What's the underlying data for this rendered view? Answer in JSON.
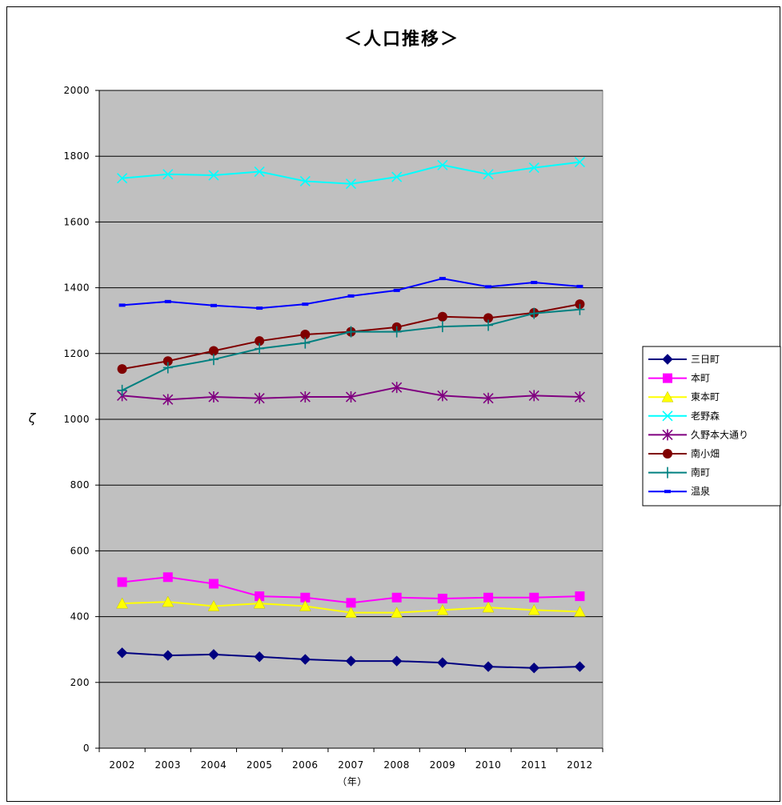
{
  "chart_data": {
    "type": "line",
    "title": "＜人口推移＞",
    "xlabel": "（年）",
    "ylabel": "ζ",
    "ylim": [
      0,
      2000
    ],
    "yticks": [
      0,
      200,
      400,
      600,
      800,
      1000,
      1200,
      1400,
      1600,
      1800,
      2000
    ],
    "categories": [
      "2002",
      "2003",
      "2004",
      "2005",
      "2006",
      "2007",
      "2008",
      "2009",
      "2010",
      "2011",
      "2012"
    ],
    "grid": true,
    "plot_background": "#c0c0c0",
    "legend_position": "right",
    "series": [
      {
        "name": "三日町",
        "color": "#000080",
        "marker": "diamond",
        "values": [
          290,
          282,
          285,
          278,
          270,
          265,
          265,
          260,
          248,
          244,
          248
        ]
      },
      {
        "name": "本町",
        "color": "#ff00ff",
        "marker": "square",
        "values": [
          505,
          520,
          500,
          462,
          458,
          442,
          458,
          455,
          458,
          458,
          462
        ]
      },
      {
        "name": "東本町",
        "color": "#ffff00",
        "marker": "triangle",
        "values": [
          440,
          445,
          432,
          440,
          432,
          412,
          412,
          420,
          428,
          420,
          415
        ]
      },
      {
        "name": "老野森",
        "color": "#00ffff",
        "marker": "x",
        "values": [
          1733,
          1745,
          1742,
          1753,
          1724,
          1716,
          1737,
          1773,
          1745,
          1765,
          1782
        ]
      },
      {
        "name": "久野本大通り",
        "color": "#800080",
        "marker": "asterisk",
        "values": [
          1072,
          1060,
          1068,
          1064,
          1068,
          1068,
          1097,
          1072,
          1064,
          1072,
          1068
        ]
      },
      {
        "name": "南小畑",
        "color": "#800000",
        "marker": "circle",
        "values": [
          1153,
          1177,
          1208,
          1238,
          1258,
          1266,
          1280,
          1312,
          1308,
          1324,
          1350
        ]
      },
      {
        "name": "南町",
        "color": "#008080",
        "marker": "plus",
        "values": [
          1088,
          1157,
          1182,
          1215,
          1232,
          1266,
          1266,
          1282,
          1286,
          1322,
          1334
        ]
      },
      {
        "name": "温泉",
        "color": "#0000ff",
        "marker": "dash",
        "values": [
          1347,
          1358,
          1346,
          1338,
          1350,
          1375,
          1392,
          1428,
          1403,
          1416,
          1404
        ]
      }
    ]
  }
}
